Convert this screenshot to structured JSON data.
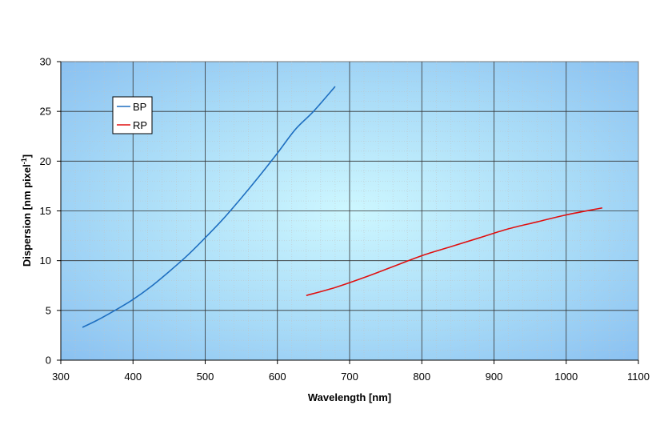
{
  "chart_data": {
    "type": "line",
    "title": "",
    "xlabel": "Wavelength [nm]",
    "ylabel_main": "Dispersion [nm pixel",
    "ylabel_sup": "-1",
    "ylabel_end": "]",
    "xlim": [
      300,
      1100
    ],
    "ylim": [
      0,
      30
    ],
    "xticks": [
      300,
      400,
      500,
      600,
      700,
      800,
      900,
      1000,
      1100
    ],
    "yticks": [
      0,
      5,
      10,
      15,
      20,
      25,
      30
    ],
    "grid": true,
    "legend_position": "top-left",
    "series": [
      {
        "name": "BP",
        "color": "#1f6fc0",
        "x": [
          330,
          350,
          375,
          400,
          425,
          450,
          475,
          500,
          525,
          550,
          575,
          600,
          625,
          650,
          680
        ],
        "y": [
          3.3,
          4.0,
          5.0,
          6.1,
          7.4,
          8.9,
          10.5,
          12.3,
          14.2,
          16.3,
          18.5,
          20.8,
          23.2,
          25.0,
          27.5
        ]
      },
      {
        "name": "RP",
        "color": "#e01010",
        "x": [
          640,
          680,
          720,
          760,
          800,
          840,
          880,
          920,
          960,
          1000,
          1050
        ],
        "y": [
          6.5,
          7.3,
          8.3,
          9.4,
          10.5,
          11.4,
          12.3,
          13.2,
          13.9,
          14.6,
          15.3
        ]
      }
    ]
  }
}
